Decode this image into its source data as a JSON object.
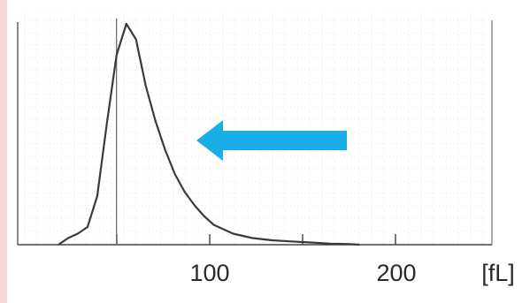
{
  "chart_data": {
    "type": "line",
    "title": "",
    "xlabel": "[fL]",
    "ylabel": "",
    "x_tick_labels": [
      "100",
      "200"
    ],
    "xlim": [
      0,
      250
    ],
    "ylim": [
      0,
      1.0
    ],
    "grid": true,
    "series": [
      {
        "x": [
          20,
          25,
          30,
          35,
          40,
          45,
          50,
          55,
          60,
          65,
          70,
          75,
          80,
          85,
          90,
          95,
          100,
          110,
          120,
          130,
          140,
          150,
          160,
          170,
          175
        ],
        "y": [
          0.0,
          0.03,
          0.05,
          0.08,
          0.22,
          0.55,
          0.86,
          1.0,
          0.93,
          0.72,
          0.56,
          0.43,
          0.32,
          0.24,
          0.18,
          0.13,
          0.09,
          0.05,
          0.03,
          0.02,
          0.015,
          0.01,
          0.005,
          0.003,
          0.0
        ]
      }
    ],
    "markers": [
      {
        "x": 27
      }
    ],
    "annotation": {
      "type": "arrow",
      "direction": "left",
      "color": "#1aaee6"
    }
  },
  "colors": {
    "curve": "#3a3a3a",
    "arrow": "#1aaee6",
    "left_edge": "#f6d6d6",
    "grid": "#e6e6e6"
  }
}
